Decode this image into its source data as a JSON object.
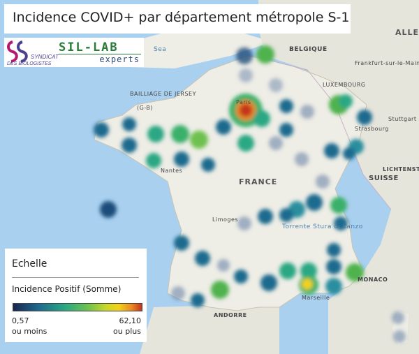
{
  "title": "Incidence COVID+ par département métropole S-1",
  "logos": {
    "syndicat": {
      "line1": "SYNDICAT",
      "line2": "DES BIOLOGISTES"
    },
    "sillab": {
      "top": "SIL-LAB",
      "bottom": "experts"
    }
  },
  "legend": {
    "header": "Echelle",
    "subtitle": "Incidence Positif (Somme)",
    "min_value": "0,57",
    "min_note": "ou moins",
    "max_value": "62,10",
    "max_note": "ou plus"
  },
  "map_labels": {
    "france": "FRANCE",
    "belgique": "BELGIQUE",
    "suisse": "SUISSE",
    "andorre": "ANDORRE",
    "monaco": "MONACO",
    "luxembourg": "LUXEMBOURG",
    "lichtenstein": "LICHTENSTEIN",
    "allemagne": "ALLE",
    "bailliage": "BAILLIAGE DE JERSEY",
    "guernesey": "(G-B)",
    "sea": "Sea",
    "paris": "Paris",
    "frankfurt": "Frankfurt-sur-le-Main",
    "stuttgart": "Stuttgart",
    "strasbourg": "Strasbourg",
    "marseille": "Marseille",
    "nantes": "Nantes",
    "limoges": "Limoges",
    "torrente": "Torrente Stura di Lanzo"
  },
  "colors": {
    "low": "#1e4d7a",
    "mid": "#2aa783",
    "high": "#f1d21a",
    "max": "#c4341c",
    "land": "#eeede6",
    "sea": "#a9d0ef"
  },
  "chart_data": {
    "type": "heatmap",
    "scale_min": 0.57,
    "scale_max": 62.1
  }
}
